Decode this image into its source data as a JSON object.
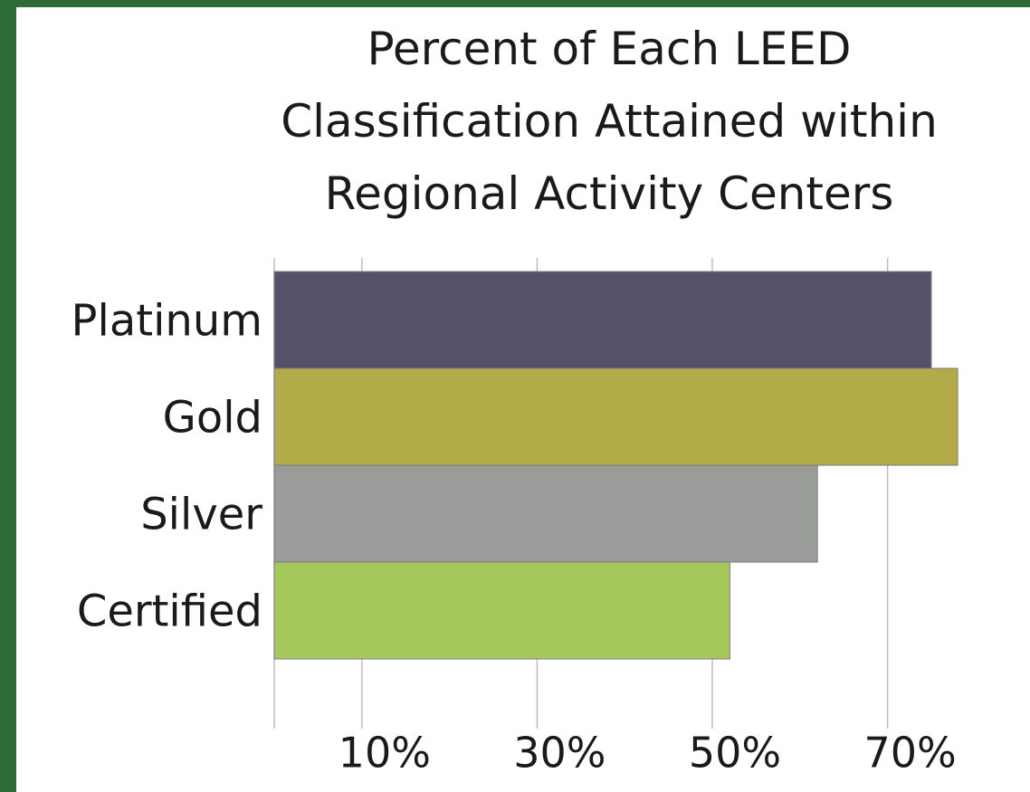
{
  "chart_data": {
    "type": "barh",
    "title": "Percent of Each LEED Classification Attained within Regional Activity Centers",
    "categories": [
      "Platinum",
      "Gold",
      "Silver",
      "Certified"
    ],
    "values": [
      75,
      78,
      62,
      52
    ],
    "colors": [
      "#55516b",
      "#b3aa48",
      "#9a9c9a",
      "#a4c95a"
    ],
    "xlim": [
      0,
      80
    ],
    "xticks": [
      {
        "value": 10,
        "label": "10%"
      },
      {
        "value": 30,
        "label": "30%"
      },
      {
        "value": 50,
        "label": "50%"
      },
      {
        "value": 70,
        "label": "70%"
      }
    ],
    "grid": true
  }
}
